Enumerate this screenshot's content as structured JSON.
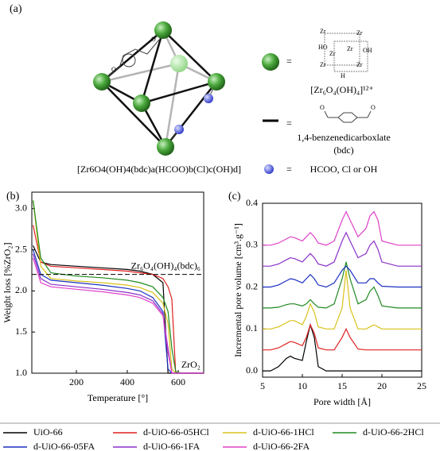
{
  "diagram": {
    "panel": "(a)",
    "equals": "=",
    "cluster_atoms": [
      "Zr",
      "Zr",
      "Zr",
      "Zr",
      "Zr",
      "Zr",
      "HO",
      "OH",
      "H"
    ],
    "linker_atom": "O",
    "cluster_formula": "[Zr₆O₄(OH)₄]¹²⁺",
    "linker_name": "1,4-benzenedicarboxlate",
    "linker_abbrev": "(bdc)",
    "formula": "[Zr6O4(OH)4(bdc)a(HCOO)b(Cl)c(OH)d]",
    "modulators": "HCOO, Cl or OH"
  },
  "chart_data": [
    {
      "type": "line",
      "panel": "(b)",
      "x_label": "Temperature [°]",
      "y_label": "Weight loss [%ZrO₂]",
      "x": [
        30,
        60,
        100,
        200,
        300,
        400,
        450,
        500,
        540,
        560,
        575,
        590,
        610,
        700
      ],
      "xlim": [
        25,
        700
      ],
      "xticks": [
        200,
        400,
        600
      ],
      "ylim": [
        1.0,
        3.2
      ],
      "yticks": [
        {
          "value": 1.0,
          "label": "1.0"
        },
        1.5,
        {
          "value": 2.0,
          "label": "2.0"
        },
        2.5,
        {
          "value": 3.0,
          "label": "3.0"
        }
      ],
      "hline": {
        "value": 2.2,
        "label": "Zr₆O₄(OH)₄(bdc)₆"
      },
      "annotation": "ZrO₂",
      "series": [
        {
          "name": "UiO-66",
          "color": "#000000",
          "values": [
            2.55,
            2.35,
            2.32,
            2.3,
            2.28,
            2.26,
            2.24,
            2.2,
            2.1,
            1.0,
            1.0,
            1.0,
            1.0,
            1.0
          ]
        },
        {
          "name": "d-UiO-66-05HCl",
          "color": "#e02020",
          "values": [
            2.8,
            2.35,
            2.3,
            2.28,
            2.26,
            2.24,
            2.22,
            2.2,
            2.15,
            2.05,
            1.9,
            1.0,
            1.0,
            1.0
          ]
        },
        {
          "name": "d-UiO-66-1HCl",
          "color": "#d8c21a",
          "values": [
            3.1,
            2.3,
            2.15,
            2.12,
            2.1,
            2.07,
            2.04,
            1.98,
            1.85,
            1.6,
            1.05,
            1.0,
            1.0,
            1.0
          ]
        },
        {
          "name": "d-UiO-66-2HCl",
          "color": "#1f8a1f",
          "values": [
            3.1,
            2.4,
            2.22,
            2.18,
            2.16,
            2.13,
            2.1,
            2.05,
            1.92,
            1.75,
            1.3,
            1.02,
            1.0,
            1.0
          ]
        },
        {
          "name": "d-UiO-66-05FA",
          "color": "#1a2fc0",
          "values": [
            2.5,
            2.2,
            2.13,
            2.1,
            2.07,
            2.03,
            2.0,
            1.92,
            1.75,
            1.05,
            1.0,
            1.0,
            1.0,
            1.0
          ]
        },
        {
          "name": "d-UiO-66-1FA",
          "color": "#8a2fc9",
          "values": [
            2.45,
            2.15,
            2.08,
            2.05,
            2.02,
            1.98,
            1.95,
            1.88,
            1.72,
            1.3,
            1.0,
            1.0,
            1.0,
            1.0
          ]
        },
        {
          "name": "d-UiO-66-2FA",
          "color": "#e040c8",
          "values": [
            2.4,
            2.1,
            2.05,
            2.02,
            1.99,
            1.95,
            1.92,
            1.85,
            1.7,
            1.25,
            1.0,
            1.0,
            1.0,
            1.0
          ]
        }
      ]
    },
    {
      "type": "line",
      "panel": "(c)",
      "x_label": "Pore width [Å]",
      "y_label": "Incremental pore volume [cm³.g⁻¹]",
      "x": [
        5,
        6,
        7,
        8,
        8.5,
        9,
        10,
        10.5,
        11,
        11.5,
        12,
        13,
        14,
        15,
        15.5,
        16,
        17,
        18,
        18.5,
        19,
        19.5,
        20,
        22,
        25
      ],
      "xlim": [
        5,
        25
      ],
      "xticks": [
        5,
        10,
        15,
        20,
        25
      ],
      "ylim": [
        -0.015,
        0.4
      ],
      "yticks": [
        {
          "value": 0.0,
          "label": "0.0"
        },
        0.1,
        0.2,
        0.3,
        0.4
      ],
      "series": [
        {
          "color": "#000000",
          "values": [
            0,
            0,
            0.01,
            0.03,
            0.035,
            0.03,
            0.025,
            0.07,
            0.11,
            0.08,
            0.01,
            0,
            0,
            0,
            0,
            0,
            0,
            0,
            0,
            0,
            0,
            0,
            0,
            0
          ]
        },
        {
          "color": "#e02020",
          "values": [
            0.05,
            0.05,
            0.055,
            0.065,
            0.07,
            0.068,
            0.06,
            0.08,
            0.11,
            0.09,
            0.055,
            0.05,
            0.05,
            0.08,
            0.1,
            0.08,
            0.052,
            0.05,
            0.05,
            0.05,
            0.05,
            0.05,
            0.05,
            0.05
          ]
        },
        {
          "color": "#d8c21a",
          "values": [
            0.1,
            0.1,
            0.105,
            0.115,
            0.12,
            0.12,
            0.11,
            0.13,
            0.16,
            0.14,
            0.105,
            0.1,
            0.1,
            0.15,
            0.24,
            0.15,
            0.1,
            0.1,
            0.105,
            0.11,
            0.105,
            0.1,
            0.1,
            0.1
          ]
        },
        {
          "color": "#1f8a1f",
          "values": [
            0.15,
            0.15,
            0.152,
            0.158,
            0.16,
            0.16,
            0.155,
            0.16,
            0.17,
            0.16,
            0.152,
            0.15,
            0.16,
            0.22,
            0.26,
            0.22,
            0.16,
            0.17,
            0.19,
            0.2,
            0.18,
            0.155,
            0.15,
            0.15
          ]
        },
        {
          "color": "#1a2fc0",
          "values": [
            0.2,
            0.2,
            0.205,
            0.215,
            0.22,
            0.218,
            0.21,
            0.22,
            0.23,
            0.22,
            0.205,
            0.2,
            0.21,
            0.24,
            0.25,
            0.24,
            0.21,
            0.21,
            0.22,
            0.22,
            0.21,
            0.202,
            0.2,
            0.2
          ]
        },
        {
          "color": "#8a2fc9",
          "values": [
            0.25,
            0.25,
            0.255,
            0.265,
            0.27,
            0.268,
            0.26,
            0.27,
            0.28,
            0.27,
            0.255,
            0.25,
            0.26,
            0.31,
            0.33,
            0.31,
            0.27,
            0.28,
            0.3,
            0.31,
            0.29,
            0.26,
            0.25,
            0.25
          ]
        },
        {
          "color": "#e040c8",
          "values": [
            0.3,
            0.3,
            0.305,
            0.315,
            0.32,
            0.318,
            0.31,
            0.32,
            0.33,
            0.32,
            0.305,
            0.3,
            0.31,
            0.36,
            0.38,
            0.36,
            0.32,
            0.34,
            0.37,
            0.38,
            0.36,
            0.31,
            0.3,
            0.3
          ]
        }
      ]
    }
  ]
}
